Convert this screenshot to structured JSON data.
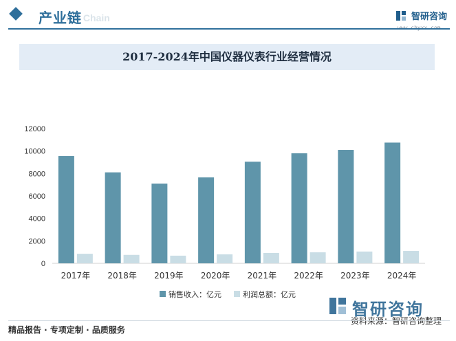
{
  "header": {
    "title": "产业链",
    "subtitle": "rial Chain",
    "brand": "智研咨询",
    "url": "www.chyxx.com"
  },
  "footer": {
    "left": "精品报告 · 专项定制 · 品质服务",
    "source": "资料来源：智研咨询整理",
    "brand": "智研咨询"
  },
  "colors": {
    "accent": "#2f6f9b",
    "sales": "#5f95aa",
    "profit": "#c9dde5"
  },
  "chart_data": {
    "type": "bar",
    "title": "2017-2024年中国仪器仪表行业经营情况",
    "categories": [
      "2017年",
      "2018年",
      "2019年",
      "2020年",
      "2021年",
      "2022年",
      "2023年",
      "2024年"
    ],
    "series": [
      {
        "name": "销售收入：亿元",
        "values": [
          9550,
          8100,
          7100,
          7650,
          9050,
          9800,
          10100,
          10750
        ],
        "color": "#5f95aa"
      },
      {
        "name": "利润总额：亿元",
        "values": [
          850,
          750,
          680,
          800,
          920,
          980,
          1050,
          1100
        ],
        "color": "#c9dde5"
      }
    ],
    "yticks": [
      "0",
      "2000",
      "4000",
      "6000",
      "8000",
      "10000",
      "12000"
    ],
    "ylim": [
      0,
      12000
    ],
    "grid": false,
    "legend": "bottom"
  }
}
